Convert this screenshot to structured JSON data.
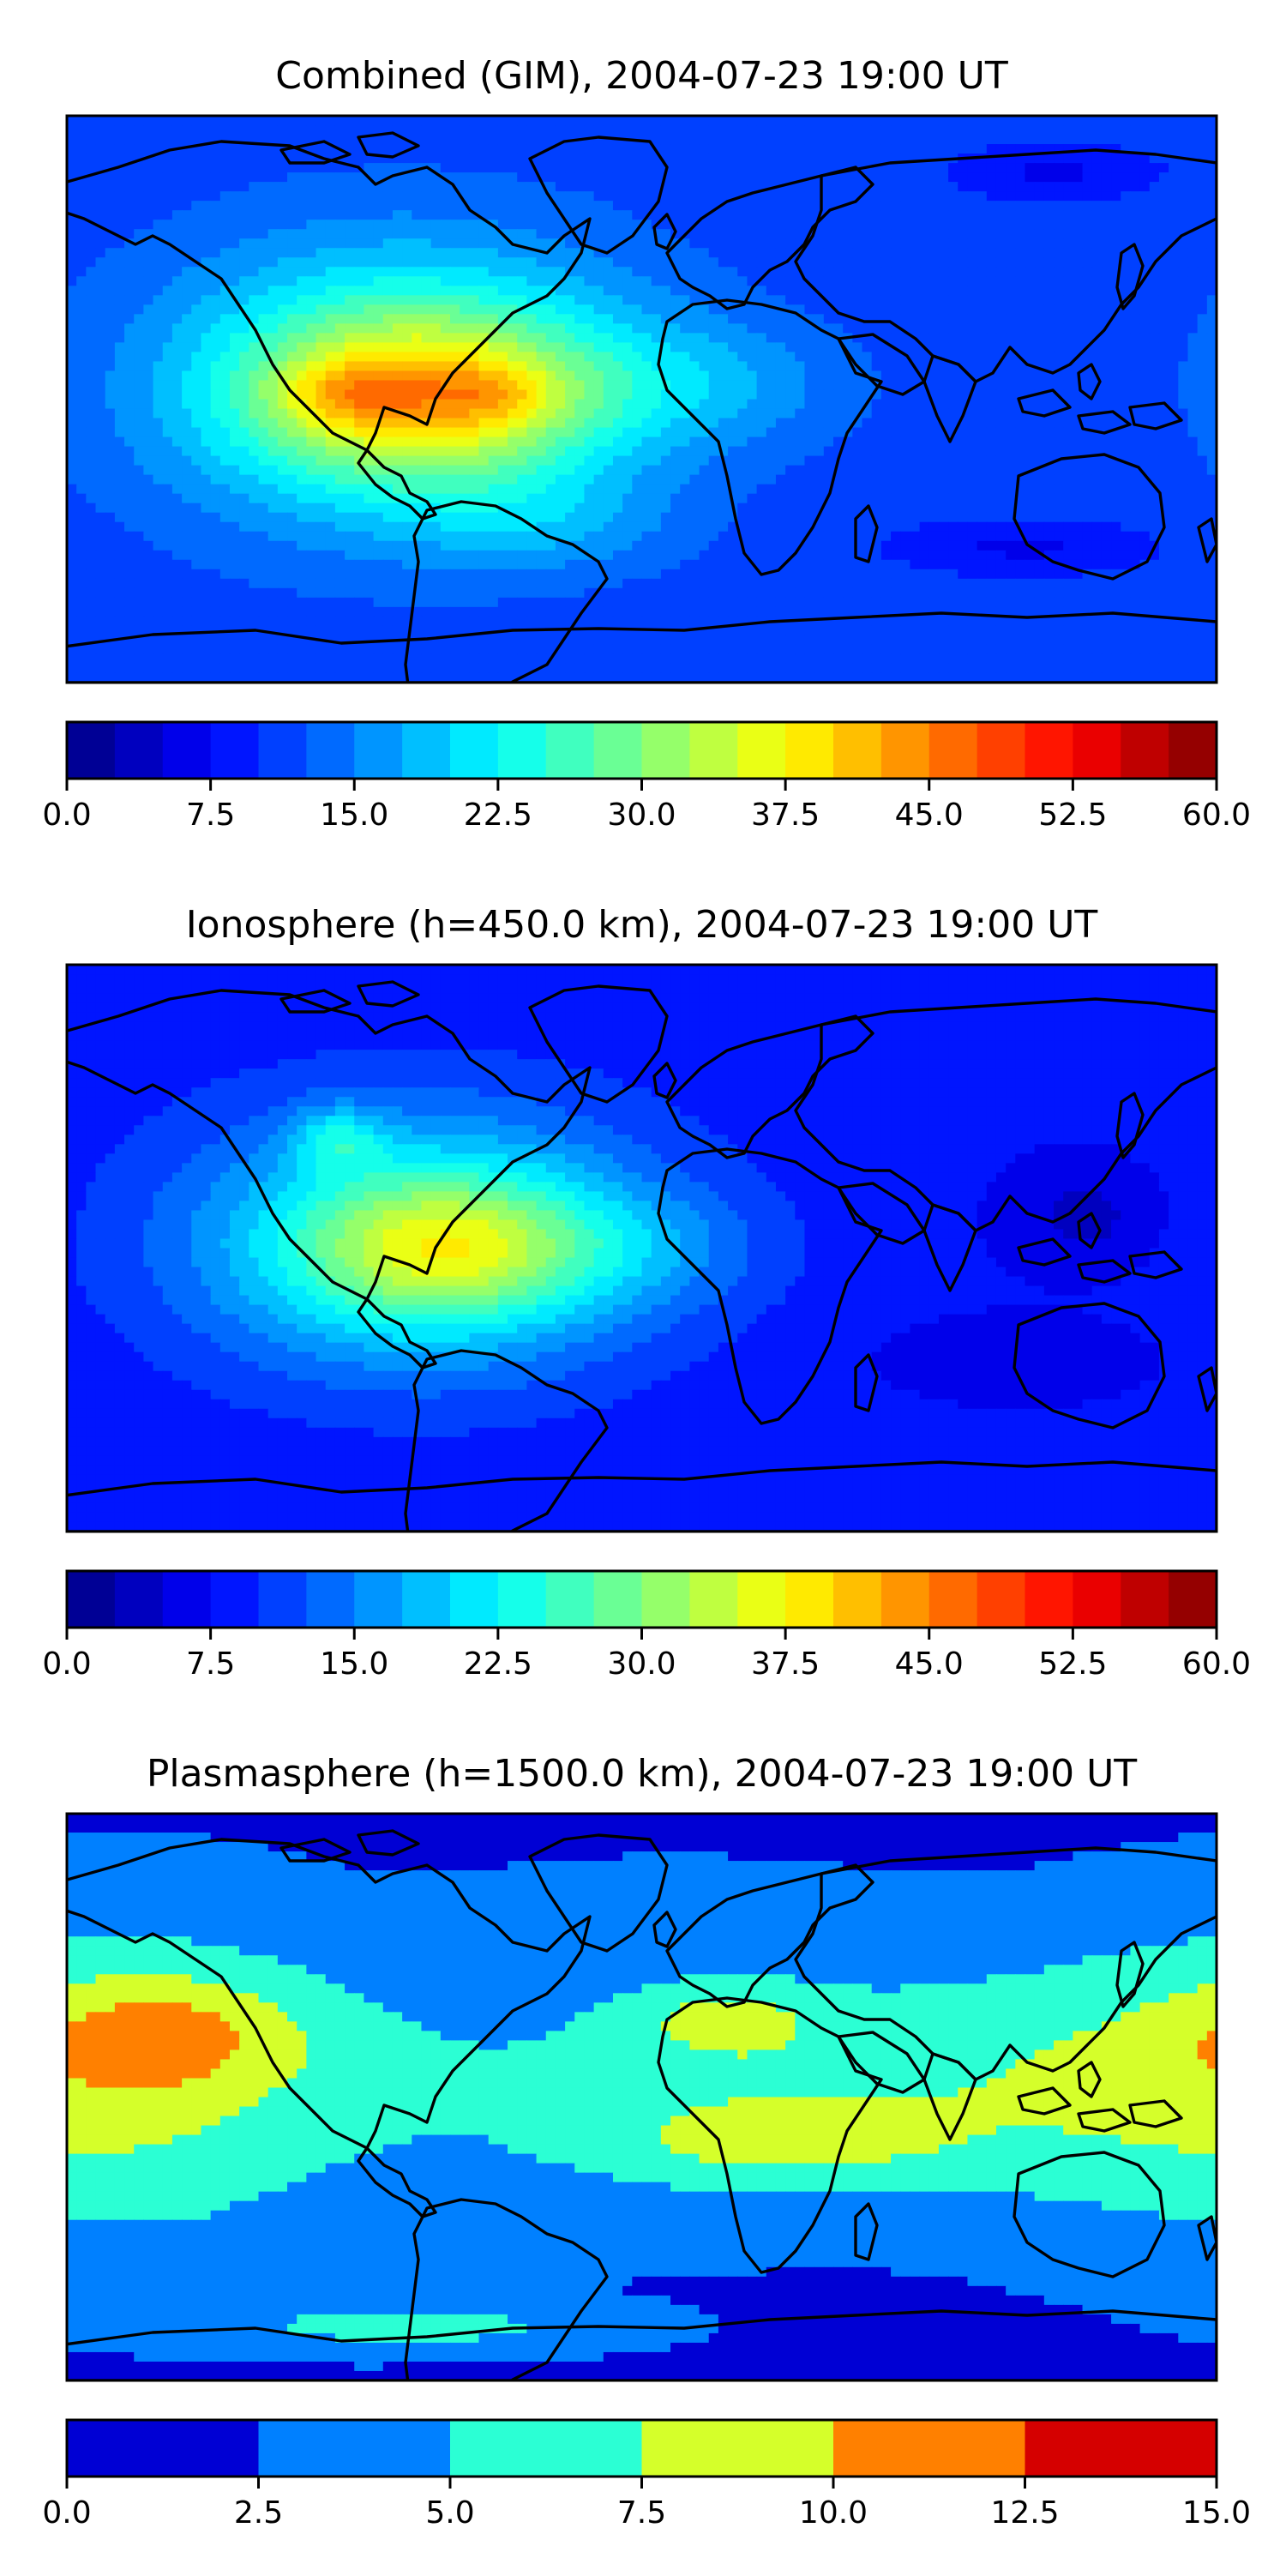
{
  "chart_data": [
    {
      "type": "heatmap",
      "title": "Combined (GIM), 2004-07-23 19:00 UT",
      "colorbar": {
        "min": 0,
        "max": 60,
        "levels": 24,
        "ticks": [
          0,
          7.5,
          15,
          22.5,
          30,
          37.5,
          45,
          52.5,
          60
        ],
        "tick_labels": [
          "0.0",
          "7.5",
          "15.0",
          "22.5",
          "30.0",
          "37.5",
          "45.0",
          "52.5",
          "60.0"
        ],
        "orientation": "horizontal",
        "placement": "below"
      },
      "background_value": 11,
      "blobs": [
        {
          "lon": -75,
          "lat": 5,
          "rx": 75,
          "ry": 45,
          "value": 15
        },
        {
          "lon": -70,
          "lat": 2,
          "rx": 60,
          "ry": 32,
          "value": 8
        },
        {
          "lon": -65,
          "lat": 0,
          "rx": 48,
          "ry": 22,
          "value": 10
        },
        {
          "lon": -95,
          "lat": 2,
          "rx": 20,
          "ry": 10,
          "value": 6
        },
        {
          "lon": -45,
          "lat": 2,
          "rx": 18,
          "ry": 9,
          "value": 4
        },
        {
          "lon": 20,
          "lat": 5,
          "rx": 45,
          "ry": 20,
          "value": 5
        },
        {
          "lon": -30,
          "lat": -40,
          "rx": 40,
          "ry": 15,
          "value": 4
        },
        {
          "lon": 130,
          "lat": 72,
          "rx": 30,
          "ry": 8,
          "value": -4
        },
        {
          "lon": 120,
          "lat": -47,
          "rx": 40,
          "ry": 8,
          "value": -4
        }
      ],
      "geography": "world-coastlines"
    },
    {
      "type": "heatmap",
      "title": "Ionosphere  (h=450.0 km), 2004-07-23 19:00 UT",
      "colorbar": {
        "min": 0,
        "max": 60,
        "levels": 24,
        "ticks": [
          0,
          7.5,
          15,
          22.5,
          30,
          37.5,
          45,
          52.5,
          60
        ],
        "tick_labels": [
          "0.0",
          "7.5",
          "15.0",
          "22.5",
          "30.0",
          "37.5",
          "45.0",
          "52.5",
          "60.0"
        ],
        "orientation": "horizontal",
        "placement": "below"
      },
      "background_value": 8,
      "blobs": [
        {
          "lon": -70,
          "lat": 3,
          "rx": 80,
          "ry": 45,
          "value": 12
        },
        {
          "lon": -65,
          "lat": 0,
          "rx": 55,
          "ry": 30,
          "value": 10
        },
        {
          "lon": -60,
          "lat": 0,
          "rx": 40,
          "ry": 20,
          "value": 8
        },
        {
          "lon": -95,
          "lat": 35,
          "rx": 14,
          "ry": 10,
          "value": 8
        },
        {
          "lon": 0,
          "lat": 0,
          "rx": 40,
          "ry": 18,
          "value": 4
        },
        {
          "lon": 140,
          "lat": 10,
          "rx": 25,
          "ry": 18,
          "value": -4
        },
        {
          "lon": 120,
          "lat": -35,
          "rx": 40,
          "ry": 12,
          "value": -3
        }
      ],
      "geography": "world-coastlines"
    },
    {
      "type": "heatmap",
      "title": "Plasmasphere (h=1500.0 km), 2004-07-23 19:00 UT",
      "colorbar": {
        "min": 0,
        "max": 15,
        "levels": 6,
        "ticks": [
          0,
          2.5,
          5,
          7.5,
          10,
          12.5,
          15
        ],
        "tick_labels": [
          "0.0",
          "2.5",
          "5.0",
          "7.5",
          "10.0",
          "12.5",
          "15.0"
        ],
        "orientation": "horizontal",
        "placement": "below"
      },
      "background_value": 1.8,
      "blobs": [
        {
          "lon": -160,
          "lat": 5,
          "rx": 85,
          "ry": 55,
          "value": 5.4
        },
        {
          "lon": -147,
          "lat": 20,
          "rx": 40,
          "ry": 18,
          "value": 4.2
        },
        {
          "lon": 55,
          "lat": 5,
          "rx": 130,
          "ry": 40,
          "value": 4.6
        },
        {
          "lon": 25,
          "lat": 25,
          "rx": 30,
          "ry": 12,
          "value": 3.4
        },
        {
          "lon": 40,
          "lat": -15,
          "rx": 60,
          "ry": 14,
          "value": 3.4
        },
        {
          "lon": 10,
          "lat": 62,
          "rx": 55,
          "ry": 12,
          "value": 2.4
        },
        {
          "lon": -40,
          "lat": -45,
          "rx": 70,
          "ry": 10,
          "value": 2.0
        },
        {
          "lon": -70,
          "lat": -73,
          "rx": 70,
          "ry": 9,
          "value": 3.8
        }
      ],
      "geography": "world-coastlines"
    }
  ]
}
